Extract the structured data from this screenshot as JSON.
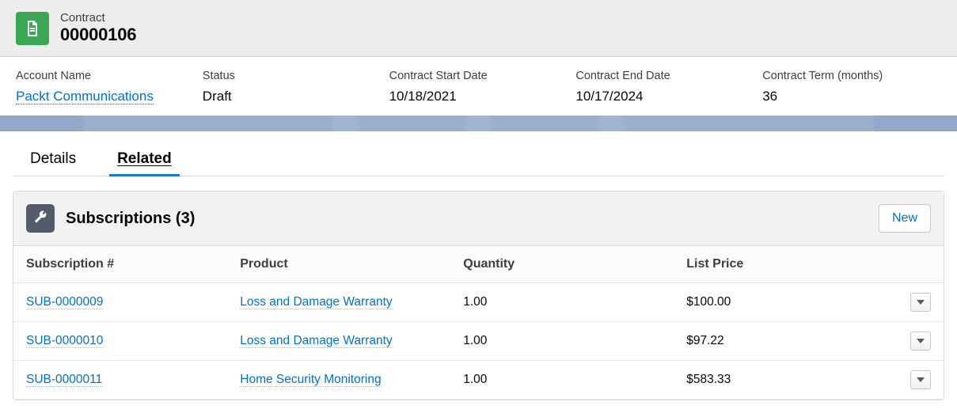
{
  "header": {
    "object_label": "Contract",
    "record_name": "00000106",
    "icon_bg": "#3ba755",
    "icon_name": "document-icon"
  },
  "summary": {
    "account_name": {
      "label": "Account Name",
      "value": "Packt Communications"
    },
    "status": {
      "label": "Status",
      "value": "Draft"
    },
    "start_date": {
      "label": "Contract Start Date",
      "value": "10/18/2021"
    },
    "end_date": {
      "label": "Contract End Date",
      "value": "10/17/2024"
    },
    "term": {
      "label": "Contract Term (months)",
      "value": "36"
    }
  },
  "tabs": {
    "details": "Details",
    "related": "Related",
    "active": "related"
  },
  "related": {
    "subscriptions": {
      "icon_bg": "#535b6d",
      "title": "Subscriptions (3)",
      "new_button": "New",
      "columns": {
        "sub_no": "Subscription #",
        "product": "Product",
        "quantity": "Quantity",
        "list_price": "List Price"
      },
      "rows": [
        {
          "sub_no": "SUB-0000009",
          "product": "Loss and Damage Warranty",
          "quantity": "1.00",
          "list_price": "$100.00"
        },
        {
          "sub_no": "SUB-0000010",
          "product": "Loss and Damage Warranty",
          "quantity": "1.00",
          "list_price": "$97.22"
        },
        {
          "sub_no": "SUB-0000011",
          "product": "Home Security Monitoring",
          "quantity": "1.00",
          "list_price": "$583.33"
        }
      ]
    }
  },
  "colors": {
    "link": "#0070d2",
    "header_bg": "#ededed",
    "strip_bg": "#8aa0c3",
    "tab_active_underline": "#1b78e2"
  }
}
